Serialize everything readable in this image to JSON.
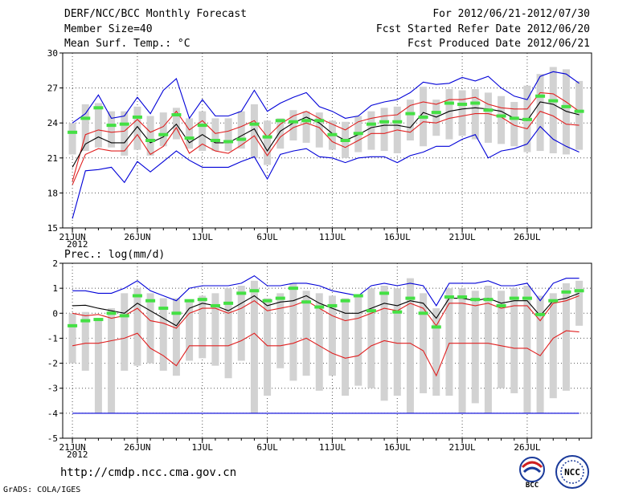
{
  "header": {
    "title": "DERF/NCC/BCC Monthly Forecast",
    "member_size": "Member Size=40",
    "variable": "Mean Surf. Temp.: °C",
    "period": "For 2012/06/21-2012/07/30",
    "started": "Fcst Started Refer Date 2012/06/20",
    "produced": "Fcst Produced Date 2012/06/21"
  },
  "footer": {
    "url": "http://cmdp.ncc.cma.gov.cn",
    "grads": "GrADS: COLA/IGES",
    "logo1": "BCC",
    "logo2": "NCC"
  },
  "colors": {
    "grey_bar": "#d2d2d2",
    "green": "#44e044",
    "red": "#e02020",
    "blue": "#0000d8",
    "black": "#000000"
  },
  "chart_data": [
    {
      "type": "line",
      "label": "Mean Surf. Temp.: °C",
      "x_tick_labels": [
        "21JUN",
        "26JUN",
        "1JUL",
        "6JUL",
        "11JUL",
        "16JUL",
        "21JUL",
        "26JUL"
      ],
      "x_tick_days": [
        1,
        6,
        11,
        16,
        21,
        26,
        31,
        36
      ],
      "x_year_label": "2012",
      "days": 40,
      "ylim": [
        15,
        30
      ],
      "y_ticks": [
        15,
        18,
        21,
        24,
        27,
        30
      ],
      "grid": true,
      "series": [
        {
          "name": "ensemble mean",
          "color": "black",
          "values": [
            20.2,
            22.2,
            22.8,
            22.3,
            22.3,
            23.7,
            22.3,
            22.8,
            23.9,
            22.3,
            23.0,
            22.3,
            22.3,
            22.9,
            23.5,
            21.6,
            23.3,
            24.0,
            24.5,
            24.0,
            23.1,
            22.5,
            23.0,
            23.6,
            23.8,
            23.8,
            23.6,
            24.9,
            24.5,
            25.0,
            25.2,
            25.3,
            25.2,
            25.0,
            24.4,
            24.2,
            25.8,
            25.6,
            25.0,
            24.7
          ]
        },
        {
          "name": "upper red",
          "color": "red",
          "values": [
            19.0,
            23.0,
            23.4,
            23.2,
            23.3,
            24.3,
            23.2,
            23.7,
            25.0,
            23.4,
            24.2,
            23.1,
            23.3,
            23.7,
            24.2,
            22.8,
            23.9,
            24.6,
            25.0,
            24.4,
            23.9,
            23.4,
            24.1,
            24.4,
            24.6,
            24.7,
            25.5,
            25.8,
            25.6,
            26.0,
            26.0,
            26.2,
            25.6,
            25.3,
            25.2,
            25.2,
            26.6,
            26.5,
            25.8,
            25.0
          ]
        },
        {
          "name": "lower red",
          "color": "red",
          "values": [
            18.7,
            21.3,
            21.8,
            21.6,
            21.6,
            23.0,
            21.3,
            22.0,
            23.6,
            21.4,
            22.2,
            21.6,
            21.4,
            22.1,
            22.9,
            21.2,
            22.8,
            23.6,
            24.0,
            23.6,
            22.4,
            21.9,
            22.5,
            23.1,
            23.1,
            23.4,
            23.2,
            24.1,
            24.0,
            24.4,
            24.6,
            24.8,
            24.8,
            24.5,
            23.8,
            23.5,
            25.0,
            24.6,
            23.9,
            23.8
          ]
        },
        {
          "name": "upper blue",
          "color": "blue",
          "values": [
            24.0,
            24.8,
            26.4,
            24.4,
            24.6,
            26.2,
            24.8,
            26.8,
            27.8,
            24.4,
            26.0,
            24.6,
            24.6,
            25.0,
            26.8,
            25.0,
            25.7,
            26.2,
            26.6,
            25.4,
            25.0,
            24.4,
            24.6,
            25.5,
            25.8,
            26.0,
            26.6,
            27.5,
            27.3,
            27.4,
            27.9,
            27.6,
            28.0,
            27.0,
            26.3,
            26.0,
            28.0,
            28.4,
            28.2,
            27.4
          ]
        },
        {
          "name": "lower blue",
          "color": "blue",
          "values": [
            15.8,
            19.9,
            20.0,
            20.2,
            18.9,
            20.7,
            19.8,
            20.7,
            21.6,
            20.8,
            20.2,
            20.2,
            20.2,
            20.7,
            21.1,
            19.2,
            21.3,
            21.6,
            21.8,
            21.1,
            21.0,
            20.6,
            21.0,
            21.1,
            21.1,
            20.6,
            21.2,
            21.5,
            22.0,
            22.0,
            22.6,
            23.0,
            21.0,
            21.6,
            21.8,
            22.2,
            23.7,
            22.6,
            22.0,
            21.5
          ]
        },
        {
          "name": "green marker",
          "color": "green",
          "values": [
            23.2,
            24.4,
            25.3,
            23.8,
            23.9,
            24.5,
            22.5,
            23.0,
            24.7,
            22.7,
            23.8,
            22.5,
            22.4,
            22.6,
            23.9,
            22.8,
            24.2,
            24.1,
            24.2,
            24.2,
            23.0,
            22.5,
            23.1,
            23.9,
            24.1,
            24.1,
            24.8,
            24.5,
            24.9,
            25.7,
            25.6,
            25.7,
            25.1,
            24.6,
            24.4,
            24.3,
            26.3,
            25.9,
            25.4,
            25.0
          ]
        },
        {
          "name": "grey bar top",
          "color": "grey",
          "values": [
            24.0,
            25.6,
            25.7,
            25.0,
            25.0,
            25.4,
            24.6,
            24.9,
            25.3,
            24.4,
            25.0,
            24.4,
            24.4,
            25.0,
            25.6,
            24.2,
            24.4,
            25.1,
            25.0,
            24.9,
            24.2,
            24.1,
            24.6,
            25.0,
            25.3,
            25.4,
            26.0,
            27.1,
            26.0,
            26.9,
            26.8,
            26.9,
            26.6,
            26.3,
            25.8,
            27.2,
            28.2,
            28.8,
            28.6,
            27.6
          ]
        },
        {
          "name": "grey bar bottom",
          "color": "grey",
          "values": [
            21.3,
            21.6,
            21.9,
            21.9,
            21.2,
            21.7,
            21.2,
            22.0,
            22.6,
            21.8,
            21.6,
            21.6,
            21.6,
            21.8,
            21.0,
            20.4,
            21.8,
            22.5,
            22.3,
            21.9,
            21.7,
            21.0,
            21.5,
            21.7,
            21.6,
            21.4,
            22.5,
            22.0,
            22.9,
            22.6,
            22.9,
            22.6,
            22.3,
            22.2,
            22.0,
            21.5,
            21.6,
            21.4,
            21.3,
            21.7
          ]
        }
      ]
    },
    {
      "type": "line",
      "label": "Prec.: log(mm/d)",
      "x_tick_labels": [
        "21JUN",
        "26JUN",
        "1JUL",
        "6JUL",
        "11JUL",
        "16JUL",
        "21JUL",
        "26JUL"
      ],
      "x_tick_days": [
        1,
        6,
        11,
        16,
        21,
        26,
        31,
        36
      ],
      "x_year_label": "2012",
      "days": 40,
      "ylim": [
        -5,
        2
      ],
      "y_ticks": [
        -5,
        -4,
        -3,
        -2,
        -1,
        0,
        1,
        2
      ],
      "grid": true,
      "series": [
        {
          "name": "ensemble mean",
          "color": "black",
          "values": [
            0.3,
            0.32,
            0.2,
            0.1,
            0.0,
            0.4,
            0.1,
            -0.2,
            -0.5,
            0.2,
            0.4,
            0.3,
            0.1,
            0.4,
            0.7,
            0.3,
            0.45,
            0.5,
            0.7,
            0.4,
            0.2,
            0.0,
            0.0,
            0.2,
            0.4,
            0.3,
            0.5,
            0.4,
            -0.2,
            0.6,
            0.6,
            0.5,
            0.6,
            0.4,
            0.5,
            0.5,
            -0.1,
            0.5,
            0.6,
            0.8
          ]
        },
        {
          "name": "upper red",
          "color": "red",
          "values": [
            0.0,
            -0.1,
            -0.05,
            -0.2,
            -0.1,
            0.2,
            -0.3,
            -0.4,
            -0.6,
            0.0,
            0.2,
            0.2,
            0.0,
            0.2,
            0.5,
            0.1,
            0.2,
            0.3,
            0.5,
            0.2,
            -0.1,
            -0.3,
            -0.2,
            0.0,
            0.2,
            0.1,
            0.4,
            0.2,
            -0.5,
            0.4,
            0.4,
            0.3,
            0.4,
            0.2,
            0.3,
            0.3,
            -0.3,
            0.4,
            0.5,
            0.7
          ]
        },
        {
          "name": "lower red",
          "color": "red",
          "values": [
            -1.3,
            -1.2,
            -1.2,
            -1.1,
            -1.0,
            -0.8,
            -1.4,
            -1.7,
            -2.1,
            -1.3,
            -1.3,
            -1.3,
            -1.3,
            -1.1,
            -0.8,
            -1.3,
            -1.3,
            -1.2,
            -1.0,
            -1.3,
            -1.6,
            -1.8,
            -1.7,
            -1.3,
            -1.1,
            -1.2,
            -1.2,
            -1.5,
            -2.5,
            -1.2,
            -1.2,
            -1.2,
            -1.2,
            -1.3,
            -1.4,
            -1.4,
            -1.7,
            -1.0,
            -0.7,
            -0.75
          ]
        },
        {
          "name": "upper blue",
          "color": "blue",
          "values": [
            0.9,
            0.9,
            0.8,
            0.8,
            1.0,
            1.3,
            0.9,
            0.7,
            0.5,
            1.0,
            1.1,
            1.1,
            1.1,
            1.2,
            1.5,
            1.1,
            1.1,
            1.2,
            1.2,
            1.1,
            0.9,
            0.8,
            0.7,
            1.1,
            1.2,
            1.1,
            1.2,
            1.1,
            0.3,
            1.2,
            1.2,
            1.2,
            1.3,
            1.1,
            1.1,
            1.2,
            0.5,
            1.2,
            1.4,
            1.4
          ]
        },
        {
          "name": "lower blue",
          "color": "blue",
          "values": [
            -4.0,
            -4.0,
            -4.0,
            -4.0,
            -4.0,
            -4.0,
            -4.0,
            -4.0,
            -4.0,
            -4.0,
            -4.0,
            -4.0,
            -4.0,
            -4.0,
            -4.0,
            -4.0,
            -4.0,
            -4.0,
            -4.0,
            -4.0,
            -4.0,
            -4.0,
            -4.0,
            -4.0,
            -4.0,
            -4.0,
            -4.0,
            -4.0,
            -4.0,
            -4.0,
            -4.0,
            -4.0,
            -4.0,
            -4.0,
            -4.0,
            -4.0,
            -4.0,
            -4.0,
            -4.0,
            -4.0
          ]
        },
        {
          "name": "green marker",
          "color": "green",
          "values": [
            -0.5,
            -0.3,
            -0.25,
            0.0,
            -0.1,
            0.7,
            0.5,
            0.2,
            0.0,
            0.5,
            0.55,
            0.3,
            0.4,
            0.8,
            0.9,
            0.5,
            0.6,
            1.0,
            0.45,
            0.25,
            0.3,
            0.5,
            0.7,
            0.1,
            0.8,
            0.05,
            0.6,
            0.0,
            -0.55,
            0.65,
            0.65,
            0.55,
            0.55,
            0.3,
            0.6,
            0.6,
            -0.05,
            0.5,
            0.85,
            0.9
          ]
        },
        {
          "name": "grey bar top",
          "color": "grey",
          "values": [
            0.0,
            0.05,
            -0.3,
            0.2,
            0.8,
            1.0,
            0.8,
            0.6,
            0.6,
            0.5,
            0.7,
            0.8,
            1.0,
            1.1,
            1.3,
            0.6,
            0.8,
            1.2,
            0.9,
            0.8,
            0.7,
            0.6,
            0.7,
            1.0,
            1.1,
            1.0,
            1.4,
            0.8,
            0.2,
            1.0,
            1.0,
            0.9,
            1.1,
            0.9,
            1.0,
            1.1,
            0.7,
            0.8,
            1.2,
            1.3
          ]
        },
        {
          "name": "grey bar bottom",
          "color": "grey",
          "values": [
            -2.0,
            -2.3,
            -4.0,
            -4.0,
            -2.3,
            -2.1,
            -2.0,
            -2.3,
            -2.5,
            -1.9,
            -1.8,
            -2.1,
            -2.6,
            -1.9,
            -4.0,
            -3.3,
            -2.2,
            -2.7,
            -2.5,
            -3.1,
            -2.5,
            -3.3,
            -2.9,
            -3.0,
            -3.5,
            -3.3,
            -4.0,
            -3.2,
            -3.3,
            -3.3,
            -4.0,
            -3.6,
            -4.0,
            -3.0,
            -3.2,
            -4.0,
            -4.0,
            -3.4,
            -3.1,
            -0.5
          ]
        }
      ]
    }
  ]
}
